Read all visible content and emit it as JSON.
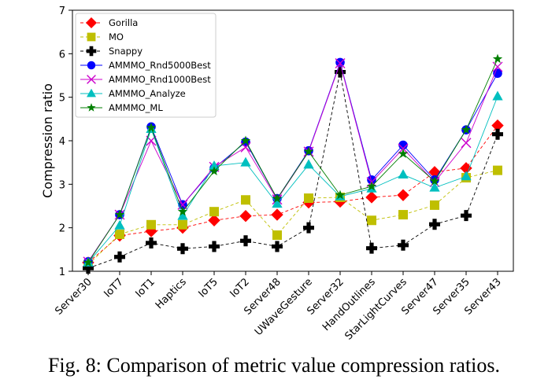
{
  "caption": "Fig. 8: Comparison of metric value compression ratios.",
  "chart_data": {
    "type": "line",
    "title": "",
    "xlabel": "",
    "ylabel": "Compression ratio",
    "ylim": [
      1,
      7
    ],
    "yticks": [
      1,
      2,
      3,
      4,
      5,
      6,
      7
    ],
    "grid": false,
    "legend_position": "top-left",
    "categories": [
      "Server30",
      "IoT7",
      "IoT1",
      "Haptics",
      "IoT5",
      "IoT2",
      "Server48",
      "UWaveGesture",
      "Server32",
      "HandOutlines",
      "StarLightCurves",
      "Server47",
      "Server35",
      "Server43"
    ],
    "series": [
      {
        "name": "Gorilla",
        "color": "#ff0000",
        "marker": "diamond",
        "values": [
          1.2,
          1.82,
          1.92,
          2.0,
          2.17,
          2.27,
          2.3,
          2.58,
          2.6,
          2.7,
          2.75,
          3.28,
          3.37,
          4.35
        ]
      },
      {
        "name": "MO",
        "color": "#bfbf00",
        "marker": "square",
        "values": [
          1.15,
          1.85,
          2.07,
          2.07,
          2.37,
          2.64,
          1.83,
          2.68,
          2.7,
          2.17,
          2.3,
          2.52,
          3.15,
          3.32
        ]
      },
      {
        "name": "Snappy",
        "color": "#000000",
        "marker": "plus",
        "values": [
          1.07,
          1.33,
          1.65,
          1.52,
          1.57,
          1.7,
          1.57,
          2.0,
          5.58,
          1.53,
          1.6,
          2.08,
          2.28,
          4.15
        ]
      },
      {
        "name": "AMMMO_Rnd5000Best",
        "color": "#0000ff",
        "marker": "circle",
        "values": [
          1.22,
          2.3,
          4.32,
          2.53,
          3.37,
          3.97,
          2.67,
          3.77,
          5.8,
          3.1,
          3.9,
          3.1,
          4.25,
          5.55
        ]
      },
      {
        "name": "AMMMO_Rnd1000Best",
        "color": "#cc00cc",
        "marker": "x",
        "values": [
          1.22,
          2.3,
          4.0,
          2.53,
          3.4,
          3.85,
          2.65,
          3.75,
          5.78,
          3.05,
          3.82,
          3.05,
          3.95,
          5.7
        ]
      },
      {
        "name": "AMMMO_Analyze",
        "color": "#00bfbf",
        "marker": "triangle",
        "values": [
          1.2,
          2.05,
          4.27,
          2.27,
          3.42,
          3.5,
          2.55,
          3.45,
          2.72,
          2.9,
          3.22,
          2.92,
          3.18,
          5.02
        ]
      },
      {
        "name": "AMMMO_ML",
        "color": "#007f00",
        "marker": "star",
        "values": [
          1.2,
          2.3,
          4.3,
          2.37,
          3.3,
          4.0,
          2.67,
          3.75,
          2.75,
          2.95,
          3.7,
          3.07,
          4.25,
          5.88
        ]
      }
    ]
  }
}
